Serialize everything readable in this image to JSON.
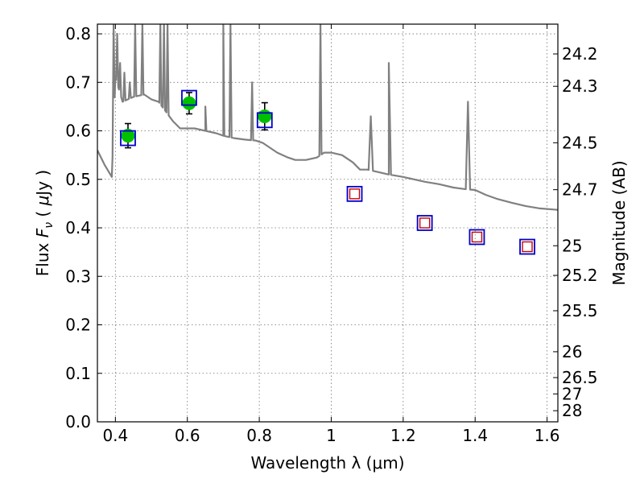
{
  "chart_data": {
    "type": "scatter",
    "xlabel": "Wavelength  λ (μm)",
    "ylabel": "Flux  F_ν  ( μJy )",
    "ylabel_parts": [
      "Flux  ",
      "F",
      "ν",
      "  ( ",
      "μ",
      "Jy )"
    ],
    "y2label": "Magnitude (AB)",
    "xlim": [
      0.35,
      1.63
    ],
    "ylim": [
      0.0,
      0.82
    ],
    "grid": true,
    "x_ticks": [
      0.4,
      0.6,
      0.8,
      1.0,
      1.2,
      1.4,
      1.6
    ],
    "x_tick_labels": [
      "0.4",
      "0.6",
      "0.8",
      "1",
      "1.2",
      "1.4",
      "1.6"
    ],
    "y_ticks": [
      0.0,
      0.1,
      0.2,
      0.3,
      0.4,
      0.5,
      0.6,
      0.7,
      0.8
    ],
    "y_tick_labels": [
      "0.0",
      "0.1",
      "0.2",
      "0.3",
      "0.4",
      "0.5",
      "0.6",
      "0.7",
      "0.8"
    ],
    "mag_ticks": [
      24.2,
      24.3,
      24.5,
      24.7,
      25,
      25.2,
      25.5,
      26,
      26.5,
      27,
      28
    ],
    "mag_tick_labels": [
      "24.2",
      "24.3",
      "24.5",
      "24.7",
      "25",
      "25.2",
      "25.5",
      "26",
      "26.5",
      "27",
      "28"
    ],
    "series": [
      {
        "kind": "spectrum-line",
        "color": "#808080",
        "continuum": [
          [
            0.35,
            0.56
          ],
          [
            0.37,
            0.53
          ],
          [
            0.39,
            0.505
          ],
          [
            0.4,
            0.71
          ],
          [
            0.42,
            0.66
          ],
          [
            0.45,
            0.67
          ],
          [
            0.48,
            0.675
          ],
          [
            0.5,
            0.665
          ],
          [
            0.52,
            0.66
          ],
          [
            0.54,
            0.64
          ],
          [
            0.56,
            0.62
          ],
          [
            0.58,
            0.605
          ],
          [
            0.6,
            0.605
          ],
          [
            0.62,
            0.605
          ],
          [
            0.65,
            0.6
          ],
          [
            0.68,
            0.595
          ],
          [
            0.7,
            0.59
          ],
          [
            0.73,
            0.585
          ],
          [
            0.76,
            0.582
          ],
          [
            0.79,
            0.58
          ],
          [
            0.81,
            0.575
          ],
          [
            0.83,
            0.565
          ],
          [
            0.85,
            0.555
          ],
          [
            0.88,
            0.545
          ],
          [
            0.9,
            0.54
          ],
          [
            0.93,
            0.54
          ],
          [
            0.96,
            0.545
          ],
          [
            0.98,
            0.555
          ],
          [
            1.0,
            0.555
          ],
          [
            1.03,
            0.55
          ],
          [
            1.06,
            0.535
          ],
          [
            1.08,
            0.52
          ],
          [
            1.1,
            0.52
          ],
          [
            1.13,
            0.515
          ],
          [
            1.16,
            0.51
          ],
          [
            1.2,
            0.505
          ],
          [
            1.23,
            0.5
          ],
          [
            1.26,
            0.495
          ],
          [
            1.3,
            0.49
          ],
          [
            1.34,
            0.483
          ],
          [
            1.37,
            0.48
          ],
          [
            1.4,
            0.478
          ],
          [
            1.43,
            0.468
          ],
          [
            1.46,
            0.46
          ],
          [
            1.5,
            0.452
          ],
          [
            1.54,
            0.445
          ],
          [
            1.58,
            0.44
          ],
          [
            1.63,
            0.437
          ]
        ],
        "emission_lines": [
          [
            0.395,
            0.82
          ],
          [
            0.405,
            0.8
          ],
          [
            0.413,
            0.74
          ],
          [
            0.425,
            0.72
          ],
          [
            0.44,
            0.7
          ],
          [
            0.455,
            0.82
          ],
          [
            0.475,
            0.82
          ],
          [
            0.525,
            0.82
          ],
          [
            0.535,
            0.82
          ],
          [
            0.545,
            0.82
          ],
          [
            0.65,
            0.65
          ],
          [
            0.7,
            0.82
          ],
          [
            0.72,
            0.82
          ],
          [
            0.78,
            0.7
          ],
          [
            0.97,
            0.82
          ],
          [
            1.11,
            0.63
          ],
          [
            1.16,
            0.74
          ],
          [
            1.38,
            0.66
          ]
        ]
      },
      {
        "kind": "observed",
        "color": "#00c000",
        "points": [
          {
            "x": 0.435,
            "y": 0.59,
            "err": 0.025
          },
          {
            "x": 0.605,
            "y": 0.657,
            "err": 0.022
          },
          {
            "x": 0.815,
            "y": 0.63,
            "err": 0.028
          }
        ]
      },
      {
        "kind": "model-blue-square",
        "color": "#0000cc",
        "points": [
          {
            "x": 0.435,
            "y": 0.585
          },
          {
            "x": 0.605,
            "y": 0.668
          },
          {
            "x": 0.815,
            "y": 0.622
          },
          {
            "x": 1.065,
            "y": 0.47
          },
          {
            "x": 1.26,
            "y": 0.41
          },
          {
            "x": 1.405,
            "y": 0.381
          },
          {
            "x": 1.545,
            "y": 0.361
          }
        ]
      },
      {
        "kind": "model-red-square",
        "color": "#cc0000",
        "points": [
          {
            "x": 1.065,
            "y": 0.47
          },
          {
            "x": 1.26,
            "y": 0.41
          },
          {
            "x": 1.405,
            "y": 0.381
          },
          {
            "x": 1.545,
            "y": 0.361
          }
        ]
      }
    ]
  }
}
